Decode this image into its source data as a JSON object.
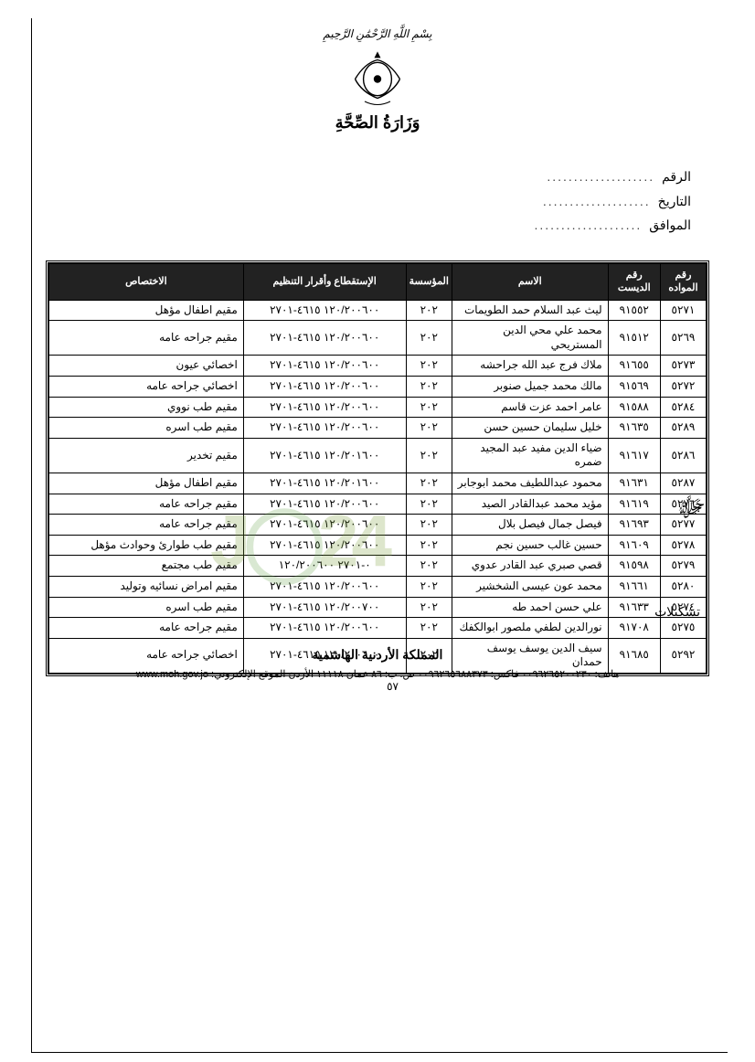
{
  "header": {
    "bismillah": "بِسْمِ اللَّهِ الرَّحْمَٰنِ الرَّحِيمِ",
    "ministry": "وَزَارَةُ الصِّحَّةِ"
  },
  "meta": {
    "ref_label": "الرقم",
    "date_label": "التاريخ",
    "corr_label": "الموافق",
    "dots": "...................."
  },
  "table": {
    "headers": {
      "seq": "رقم\nالمواده",
      "dn": "رقم\nالديست",
      "name": "الاسم",
      "inst": "المؤسسة",
      "numeric": "الإستقطاع وأقرار التنظيم",
      "spec": "الاختصاص"
    },
    "rows": [
      {
        "seq": "٥٢٧١",
        "dn": "٩١٥٥٢",
        "name": "ليث عبد السلام حمد الطويمات",
        "inst": "٢٠٢",
        "num": "١٢٠/٢٠٠٦٠٠ ٤٦١٥-٢٧٠١",
        "spec": "مقيم اطفال مؤهل"
      },
      {
        "seq": "٥٢٦٩",
        "dn": "٩١٥١٢",
        "name": "محمد علي محي الدين المستريحي",
        "inst": "٢٠٢",
        "num": "١٢٠/٢٠٠٦٠٠ ٤٦١٥-٢٧٠١",
        "spec": "مقيم جراحه عامه"
      },
      {
        "seq": "٥٢٧٣",
        "dn": "٩١٦٥٥",
        "name": "ملاك فرج عبد الله جراحشه",
        "inst": "٢٠٢",
        "num": "١٢٠/٢٠٠٦٠٠ ٤٦١٥-٢٧٠١",
        "spec": "اخصائي عيون"
      },
      {
        "seq": "٥٢٧٢",
        "dn": "٩١٥٦٩",
        "name": "مالك محمد جميل صنوبر",
        "inst": "٢٠٢",
        "num": "١٢٠/٢٠٠٦٠٠ ٤٦١٥-٢٧٠١",
        "spec": "اخصائي جراحه عامه"
      },
      {
        "seq": "٥٢٨٤",
        "dn": "٩١٥٨٨",
        "name": "عامر احمد عزت قاسم",
        "inst": "٢٠٢",
        "num": "١٢٠/٢٠٠٦٠٠ ٤٦١٥-٢٧٠١",
        "spec": "مقيم طب نووي"
      },
      {
        "seq": "٥٢٨٩",
        "dn": "٩١٦٣٥",
        "name": "خليل سليمان حسين حسن",
        "inst": "٢٠٢",
        "num": "١٢٠/٢٠٠٦٠٠ ٤٦١٥-٢٧٠١",
        "spec": "مقيم طب اسره"
      },
      {
        "seq": "٥٢٨٦",
        "dn": "٩١٦١٧",
        "name": "ضياء الدين مفيد عبد المجيد ضمره",
        "inst": "٢٠٢",
        "num": "١٢٠/٢٠١٦٠٠ ٤٦١٥-٢٧٠١",
        "spec": "مقيم تخدير"
      },
      {
        "seq": "٥٢٨٧",
        "dn": "٩١٦٣١",
        "name": "محمود عبداللطيف محمد ابوجابر",
        "inst": "٢٠٢",
        "num": "١٢٠/٢٠١٦٠٠ ٤٦١٥-٢٧٠١",
        "spec": "مقيم اطفال مؤهل"
      },
      {
        "seq": "٥٢٧٦",
        "dn": "٩١٦١٩",
        "name": "مؤيد محمد عبدالقادر الصيد",
        "inst": "٢٠٢",
        "num": "١٢٠/٢٠٠٦٠٠ ٤٦١٥-٢٧٠١",
        "spec": "مقيم جراحه عامه"
      },
      {
        "seq": "٥٢٧٧",
        "dn": "٩١٦٩٣",
        "name": "فيصل جمال فيصل بلال",
        "inst": "٢٠٢",
        "num": "١٢٠/٢٠٠٦٠٠ ٤٦١٥-٢٧٠١",
        "spec": "مقيم جراحه عامه"
      },
      {
        "seq": "٥٢٧٨",
        "dn": "٩١٦٠٩",
        "name": "حسين غالب حسين نجم",
        "inst": "٢٠٢",
        "num": "١٢٠/٢٠٠٦٠٠ ٤٦١٥-٢٧٠١",
        "spec": "مقيم طب طوارئ وحوادث مؤهل"
      },
      {
        "seq": "٥٢٧٩",
        "dn": "٩١٥٩٨",
        "name": "قصي صبري عبد القادر عدوي",
        "inst": "٢٠٢",
        "num": "٠-٢٧٠١ ١٢٠/٢٠٠٦٠٠",
        "spec": "مقيم طب مجتمع"
      },
      {
        "seq": "٥٢٨٠",
        "dn": "٩١٦٦١",
        "name": "محمد عون عيسى الشخشير",
        "inst": "٢٠٢",
        "num": "١٢٠/٢٠٠٦٠٠ ٤٦١٥-٢٧٠١",
        "spec": "مقيم امراض نسائيه وتوليد"
      },
      {
        "seq": "٥٢٧٤",
        "dn": "٩١٦٣٣",
        "name": "علي حسن احمد طه",
        "inst": "٢٠٢",
        "num": "١٢٠/٢٠٠٧٠٠ ٤٦١٥-٢٧٠١",
        "spec": "مقيم طب اسره"
      },
      {
        "seq": "٥٢٧٥",
        "dn": "٩١٧٠٨",
        "name": "نورالدين لطفي ملصور ابوالكفك",
        "inst": "٢٠٢",
        "num": "١٢٠/٢٠٠٦٠٠ ٤٦١٥-٢٧٠١",
        "spec": "مقيم جراحه عامه"
      },
      {
        "seq": "٥٢٩٢",
        "dn": "٩١٦٨٥",
        "name": "سيف الدين يوسف يوسف حمدان",
        "inst": "٢٠٢",
        "num": "١٢٠/٢٠٠٦٠٠ ٤٦١٥-٢٧٠١",
        "spec": "اخصائي جراحه عامه"
      }
    ]
  },
  "page_number": "٥٧",
  "salutation": "تشكيلات",
  "footer": {
    "kingdom": "المملكة الأردنية الهاشمية",
    "contact": "هاتف: ٠٠٩٦٢٦٥٢٠٠٢٣٠ فاكس: ٠٠٩٦٢٦٥٦٨٨٣٧٣ ص. ب: ٨٦ عمان ١١١١٨ الأردن الموقع الإلكتروني: www.moh.gov.jo"
  },
  "watermark": "JO24"
}
